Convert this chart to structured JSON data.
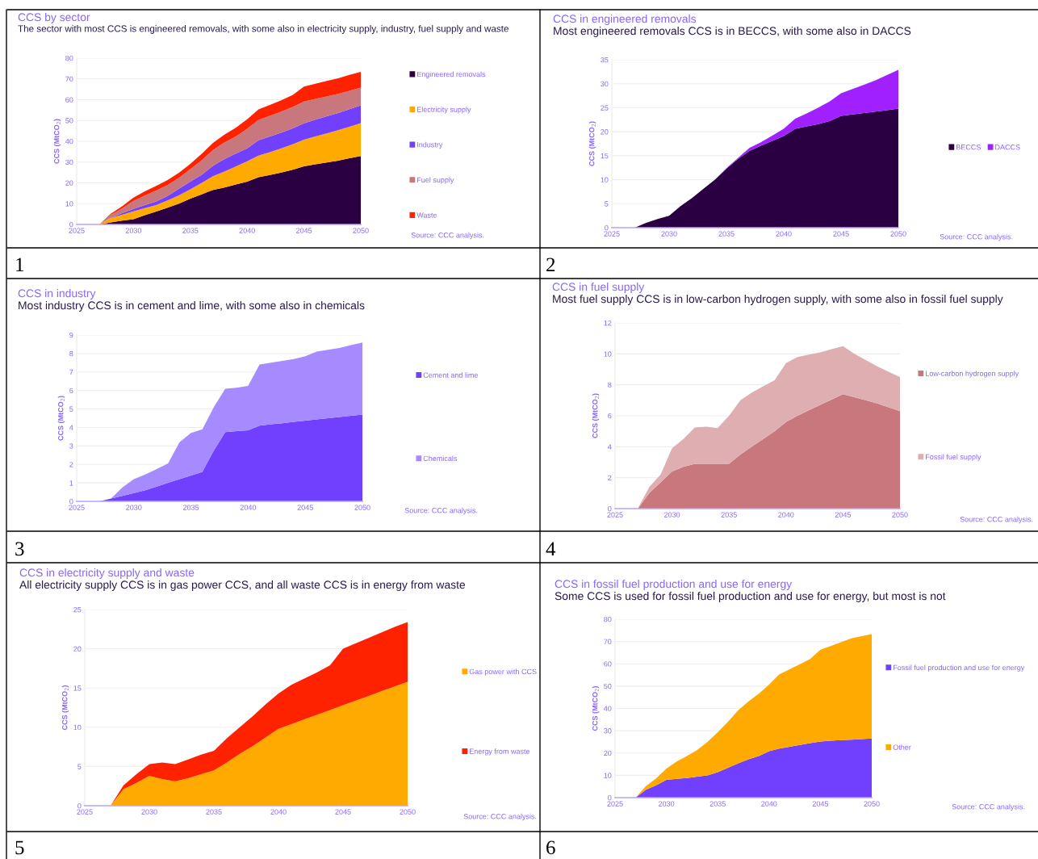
{
  "chart_data": [
    {
      "type": "area",
      "stacked": true,
      "title": "CCS by sector",
      "subtitle": "The sector with most CCS is engineered removals, with some also in electricity supply, industry, fuel supply and waste",
      "ylabel": "CCS (MtCO$_{2}$)",
      "x": [
        2025,
        2026,
        2027,
        2028,
        2029,
        2030,
        2031,
        2032,
        2033,
        2034,
        2035,
        2036,
        2037,
        2038,
        2039,
        2040,
        2041,
        2042,
        2043,
        2044,
        2045,
        2046,
        2047,
        2048,
        2049,
        2050
      ],
      "xlim": [
        2025,
        2050
      ],
      "xticks": [
        2025,
        2030,
        2035,
        2040,
        2045,
        2050
      ],
      "ylim": [
        0,
        80
      ],
      "yticks": [
        0,
        10,
        20,
        30,
        40,
        50,
        60,
        70,
        80
      ],
      "grid": "y",
      "legend": "right",
      "annotations": [
        "Source: CCC analysis.",
        "1"
      ],
      "series": [
        {
          "name": "Engineered removals",
          "color": "#2a0042",
          "values": [
            0,
            0,
            0,
            1,
            1.8,
            2.5,
            4.5,
            6.2,
            8.1,
            10,
            12.4,
            14.5,
            16.6,
            17.8,
            19.2,
            20.6,
            22.7,
            23.8,
            25,
            26.3,
            28,
            28.9,
            29.8,
            30.7,
            31.8,
            32.9
          ]
        },
        {
          "name": "Electricity supply",
          "color": "#ffaa00",
          "values": [
            0,
            0,
            0,
            2.1,
            2.9,
            3.8,
            3.4,
            3.1,
            3.5,
            4,
            4.5,
            5.5,
            6.6,
            7.6,
            8.7,
            9.8,
            10.4,
            11,
            11.6,
            12.2,
            12.8,
            13.4,
            14,
            14.6,
            15.2,
            15.8
          ]
        },
        {
          "name": "Industry",
          "color": "#7140ff",
          "values": [
            0,
            0,
            0,
            0.15,
            0.75,
            1.2,
            1.45,
            1.75,
            2.05,
            3.2,
            3.7,
            3.9,
            5.1,
            6.1,
            6.15,
            6.25,
            7.4,
            7.5,
            7.6,
            7.7,
            7.85,
            8.1,
            8.2,
            8.3,
            8.45,
            8.6
          ]
        },
        {
          "name": "Fuel supply",
          "color": "#c8777c",
          "values": [
            0,
            0,
            0,
            1.4,
            2.2,
            3.9,
            4.5,
            5.25,
            5.3,
            5.2,
            6,
            7,
            7.5,
            7.9,
            8.3,
            9.4,
            9.8,
            9.95,
            10.1,
            10.3,
            10.5,
            10,
            9.6,
            9.2,
            8.85,
            8.5
          ]
        },
        {
          "name": "Waste",
          "color": "#ff2200",
          "values": [
            0,
            0,
            0,
            0.5,
            1.1,
            1.5,
            2.1,
            2.2,
            2.4,
            2.5,
            2.5,
            3.1,
            3.4,
            3.8,
            4.2,
            4.5,
            5,
            5.2,
            5.4,
            5.7,
            7.2,
            7.3,
            7.4,
            7.5,
            7.6,
            7.6
          ]
        }
      ]
    },
    {
      "type": "area",
      "stacked": true,
      "title": "CCS in engineered removals",
      "subtitle": "Most engineered removals CCS is in BECCS, with some also in DACCS",
      "ylabel": "CCS (MtCO$_{2}$)",
      "x": [
        2025,
        2026,
        2027,
        2028,
        2029,
        2030,
        2031,
        2032,
        2033,
        2034,
        2035,
        2036,
        2037,
        2038,
        2039,
        2040,
        2041,
        2042,
        2043,
        2044,
        2045,
        2046,
        2047,
        2048,
        2049,
        2050
      ],
      "xlim": [
        2025,
        2050
      ],
      "xticks": [
        2025,
        2030,
        2035,
        2040,
        2045,
        2050
      ],
      "ylim": [
        0,
        35
      ],
      "yticks": [
        0,
        5,
        10,
        15,
        20,
        25,
        30,
        35
      ],
      "grid": "y",
      "legend": "right",
      "annotations": [
        "Source: CCC analysis.",
        "2"
      ],
      "series": [
        {
          "name": "BECCS",
          "color": "#2a0042",
          "values": [
            0,
            0,
            0,
            1,
            1.8,
            2.5,
            4.5,
            6.2,
            8.1,
            10,
            12.3,
            14.3,
            16,
            17.1,
            18.1,
            19.1,
            20.6,
            21.1,
            21.6,
            22.2,
            23.3,
            23.6,
            23.9,
            24.2,
            24.5,
            24.8
          ]
        },
        {
          "name": "DACCS",
          "color": "#a020ff",
          "values": [
            0,
            0,
            0,
            0,
            0,
            0,
            0,
            0,
            0,
            0,
            0.1,
            0.2,
            0.6,
            0.7,
            1.1,
            1.5,
            2.1,
            2.7,
            3.4,
            4.1,
            4.7,
            5.3,
            5.9,
            6.5,
            7.3,
            8.1
          ]
        }
      ]
    },
    {
      "type": "area",
      "stacked": true,
      "title": "CCS in industry",
      "subtitle": "Most industry CCS is in cement and lime, with some also in chemicals",
      "ylabel": "CCS (MtCO$_{2}$)",
      "x": [
        2025,
        2026,
        2027,
        2028,
        2029,
        2030,
        2031,
        2032,
        2033,
        2034,
        2035,
        2036,
        2037,
        2038,
        2039,
        2040,
        2041,
        2042,
        2043,
        2044,
        2045,
        2046,
        2047,
        2048,
        2049,
        2050
      ],
      "xlim": [
        2025,
        2050
      ],
      "xticks": [
        2025,
        2030,
        2035,
        2040,
        2045,
        2050
      ],
      "ylim": [
        0,
        9
      ],
      "yticks": [
        0,
        1,
        2,
        3,
        4,
        5,
        6,
        7,
        8,
        9
      ],
      "grid": "y",
      "legend": "right",
      "annotations": [
        "Source: CCC analysis.",
        "3"
      ],
      "series": [
        {
          "name": "Cement and lime",
          "color": "#7140ff",
          "values": [
            0,
            0,
            0,
            0.15,
            0.3,
            0.45,
            0.6,
            0.8,
            1,
            1.2,
            1.4,
            1.6,
            2.75,
            3.75,
            3.8,
            3.85,
            4.1,
            4.17,
            4.23,
            4.3,
            4.37,
            4.43,
            4.5,
            4.57,
            4.63,
            4.7
          ]
        },
        {
          "name": "Chemicals",
          "color": "#a68aff",
          "values": [
            0,
            0,
            0,
            0,
            0.45,
            0.75,
            0.85,
            0.95,
            1.05,
            2,
            2.3,
            2.3,
            2.35,
            2.35,
            2.35,
            2.4,
            3.3,
            3.33,
            3.37,
            3.4,
            3.48,
            3.67,
            3.7,
            3.73,
            3.82,
            3.9
          ]
        }
      ]
    },
    {
      "type": "area",
      "stacked": true,
      "title": "CCS in fuel supply",
      "subtitle": "Most fuel supply CCS is in low-carbon hydrogen supply, with some also in fossil fuel supply",
      "ylabel": "CCS (MtCO$_{2}$)",
      "x": [
        2025,
        2026,
        2027,
        2028,
        2029,
        2030,
        2031,
        2032,
        2033,
        2034,
        2035,
        2036,
        2037,
        2038,
        2039,
        2040,
        2041,
        2042,
        2043,
        2044,
        2045,
        2046,
        2047,
        2048,
        2049,
        2050
      ],
      "xlim": [
        2025,
        2050
      ],
      "xticks": [
        2025,
        2030,
        2035,
        2040,
        2045,
        2050
      ],
      "ylim": [
        0,
        12
      ],
      "yticks": [
        0,
        2,
        4,
        6,
        8,
        10,
        12
      ],
      "grid": "y",
      "legend": "right",
      "annotations": [
        "Source: CCC analysis.",
        "4"
      ],
      "series": [
        {
          "name": "Low-carbon hydrogen supply",
          "color": "#c8777c",
          "values": [
            0,
            0,
            0,
            1,
            1.7,
            2.4,
            2.7,
            2.9,
            2.9,
            2.9,
            2.9,
            3.5,
            4,
            4.5,
            5,
            5.6,
            6,
            6.35,
            6.7,
            7.05,
            7.4,
            7.2,
            7,
            6.8,
            6.55,
            6.3
          ]
        },
        {
          "name": "Fossil fuel supply",
          "color": "#deaeb0",
          "values": [
            0,
            0,
            0,
            0.4,
            0.5,
            1.5,
            1.8,
            2.35,
            2.4,
            2.3,
            3.1,
            3.5,
            3.5,
            3.4,
            3.3,
            3.8,
            3.8,
            3.6,
            3.4,
            3.25,
            3.1,
            2.8,
            2.6,
            2.4,
            2.3,
            2.2
          ]
        }
      ]
    },
    {
      "type": "area",
      "stacked": true,
      "title": "CCS in electricity supply and waste",
      "subtitle": "All electricity supply CCS is in gas power CCS, and all waste CCS is in energy from waste",
      "ylabel": "CCS (MtCO$_{2}$)",
      "x": [
        2025,
        2026,
        2027,
        2028,
        2029,
        2030,
        2031,
        2032,
        2033,
        2034,
        2035,
        2036,
        2037,
        2038,
        2039,
        2040,
        2041,
        2042,
        2043,
        2044,
        2045,
        2046,
        2047,
        2048,
        2049,
        2050
      ],
      "xlim": [
        2025,
        2050
      ],
      "xticks": [
        2025,
        2030,
        2035,
        2040,
        2045,
        2050
      ],
      "ylim": [
        0,
        25
      ],
      "yticks": [
        0,
        5,
        10,
        15,
        20,
        25
      ],
      "grid": "y",
      "legend": "right",
      "annotations": [
        "Source: CCC analysis.",
        "5"
      ],
      "series": [
        {
          "name": "Gas power with CCS",
          "color": "#ffaa00",
          "values": [
            0,
            0,
            0,
            2.1,
            2.9,
            3.8,
            3.4,
            3.1,
            3.5,
            4,
            4.5,
            5.5,
            6.6,
            7.6,
            8.7,
            9.8,
            10.4,
            11,
            11.6,
            12.2,
            12.8,
            13.4,
            14,
            14.6,
            15.2,
            15.8
          ]
        },
        {
          "name": "Energy from waste",
          "color": "#ff2200",
          "values": [
            0,
            0,
            0,
            0.5,
            1.1,
            1.5,
            2.1,
            2.2,
            2.4,
            2.5,
            2.5,
            3.1,
            3.4,
            3.8,
            4.2,
            4.5,
            5,
            5.2,
            5.4,
            5.7,
            7.2,
            7.3,
            7.4,
            7.5,
            7.6,
            7.6
          ]
        }
      ]
    },
    {
      "type": "area",
      "stacked": true,
      "title": "CCS in fossil fuel production and use for energy",
      "subtitle": "Some CCS is used for fossil fuel production and use for energy, but most is not",
      "ylabel": "CCS (MtCO$_{2}$)",
      "x": [
        2025,
        2026,
        2027,
        2028,
        2029,
        2030,
        2031,
        2032,
        2033,
        2034,
        2035,
        2036,
        2037,
        2038,
        2039,
        2040,
        2041,
        2042,
        2043,
        2044,
        2045,
        2046,
        2047,
        2048,
        2049,
        2050
      ],
      "xlim": [
        2025,
        2050
      ],
      "xticks": [
        2025,
        2030,
        2035,
        2040,
        2045,
        2050
      ],
      "ylim": [
        0,
        80
      ],
      "yticks": [
        0,
        10,
        20,
        30,
        40,
        50,
        60,
        70,
        80
      ],
      "grid": "y",
      "legend": "right",
      "annotations": [
        "Source: CCC analysis.",
        "6"
      ],
      "series": [
        {
          "name": "Fossil fuel production and use for energy",
          "color": "#7140ff",
          "values": [
            0,
            0,
            0,
            3.5,
            5.5,
            8,
            8.4,
            8.8,
            9.4,
            10,
            11.4,
            13.4,
            15.4,
            17.2,
            18.6,
            20.8,
            22,
            22.8,
            23.6,
            24.4,
            25.2,
            25.5,
            25.8,
            26,
            26.2,
            26.5
          ]
        },
        {
          "name": "Other",
          "color": "#ffaa00",
          "values": [
            0,
            0,
            0,
            1.7,
            3.1,
            5,
            7.8,
            9.8,
            12,
            15,
            17.9,
            20.6,
            23.8,
            26,
            28,
            29.9,
            33.3,
            34.8,
            36.2,
            37.8,
            41.1,
            42.5,
            43.9,
            45.4,
            46.2,
            46.8
          ]
        }
      ]
    }
  ]
}
